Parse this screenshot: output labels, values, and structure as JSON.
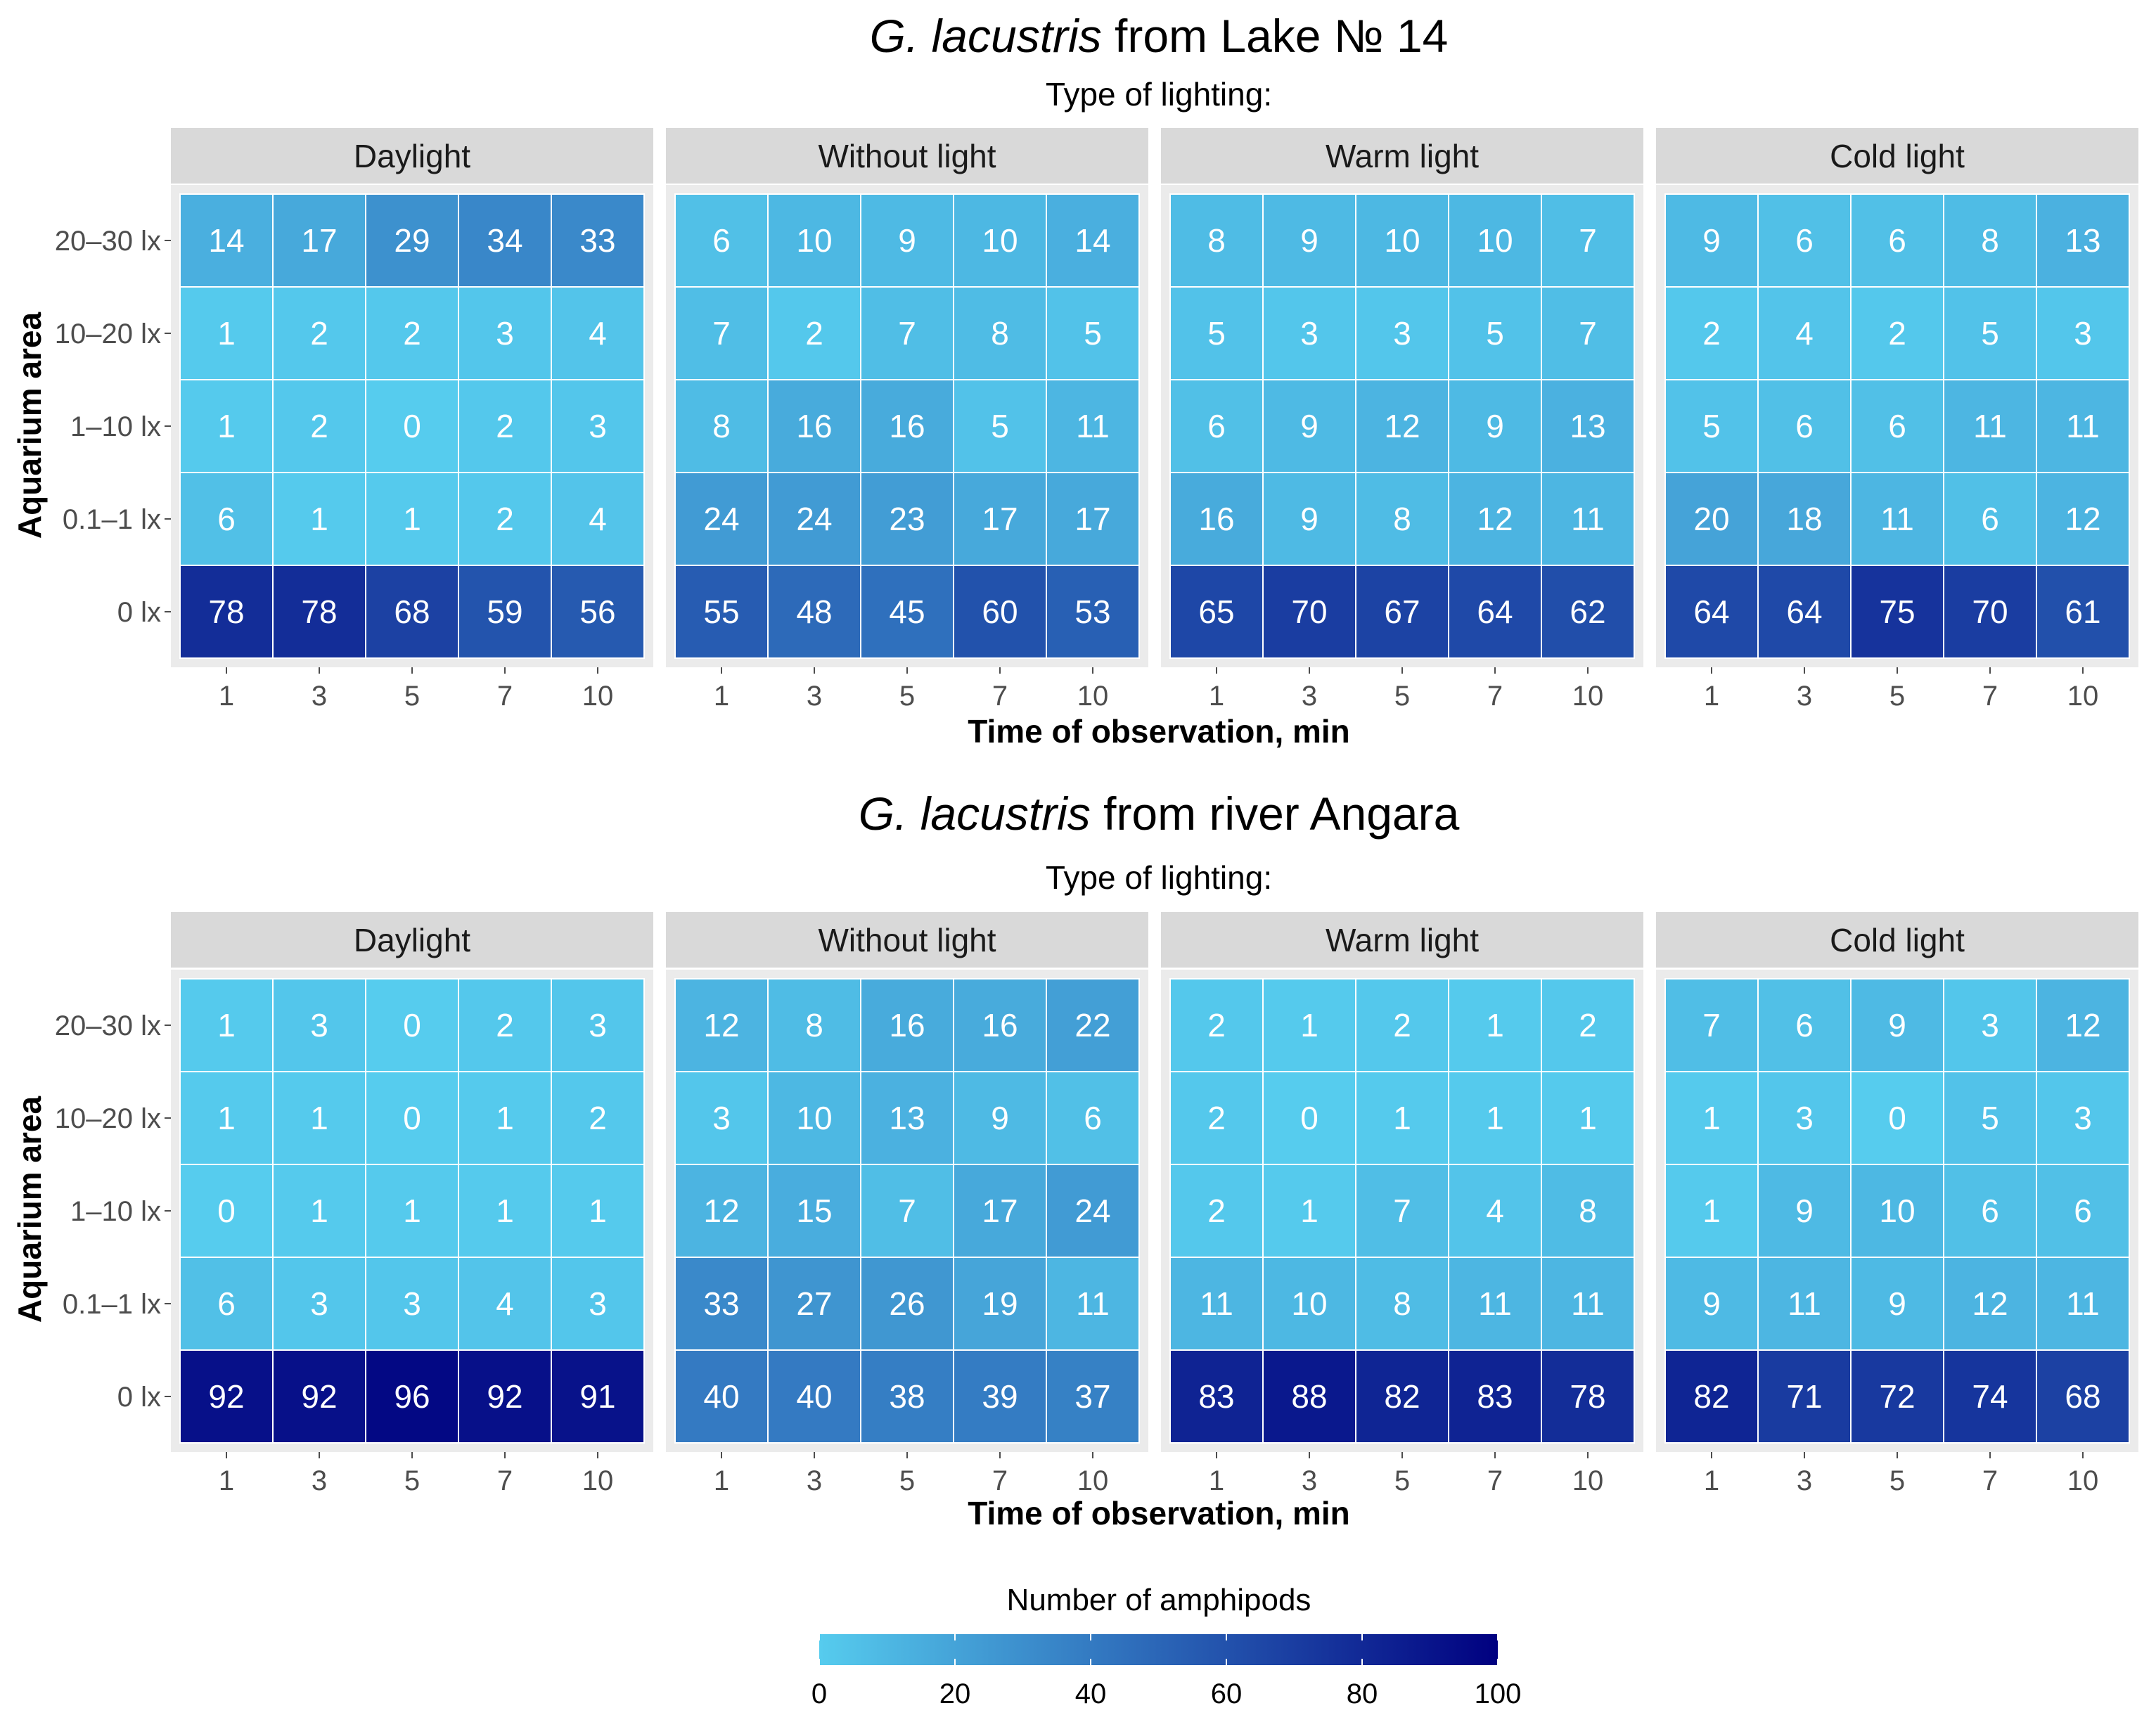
{
  "legend": {
    "title": "Number of amphipods",
    "ticks": [
      "0",
      "20",
      "40",
      "60",
      "80",
      "100"
    ],
    "range": [
      0,
      100
    ],
    "low_color": "#56CCEE",
    "high_color": "#000080"
  },
  "chart_data": [
    {
      "type": "heatmap",
      "title": {
        "species": "G. lacustris",
        "rest": " from Lake № 14"
      },
      "subtitle": "Type of lighting:",
      "xlabel": "Time of observation, min",
      "ylabel": "Aquarium area",
      "x": [
        "1",
        "3",
        "5",
        "7",
        "10"
      ],
      "y": [
        "20–30 lx",
        "10–20 lx",
        "1–10 lx",
        "0.1–1 lx",
        "0 lx"
      ],
      "facets": [
        {
          "name": "Daylight",
          "values": [
            [
              14,
              17,
              29,
              34,
              33
            ],
            [
              1,
              2,
              2,
              3,
              4
            ],
            [
              1,
              2,
              0,
              2,
              3
            ],
            [
              6,
              1,
              1,
              2,
              4
            ],
            [
              78,
              78,
              68,
              59,
              56
            ]
          ]
        },
        {
          "name": "Without light",
          "values": [
            [
              6,
              10,
              9,
              10,
              14
            ],
            [
              7,
              2,
              7,
              8,
              5
            ],
            [
              8,
              16,
              16,
              5,
              11
            ],
            [
              24,
              24,
              23,
              17,
              17
            ],
            [
              55,
              48,
              45,
              60,
              53
            ]
          ]
        },
        {
          "name": "Warm light",
          "values": [
            [
              8,
              9,
              10,
              10,
              7
            ],
            [
              5,
              3,
              3,
              5,
              7
            ],
            [
              6,
              9,
              12,
              9,
              13
            ],
            [
              16,
              9,
              8,
              12,
              11
            ],
            [
              65,
              70,
              67,
              64,
              62
            ]
          ]
        },
        {
          "name": "Cold light",
          "values": [
            [
              9,
              6,
              6,
              8,
              13
            ],
            [
              2,
              4,
              2,
              5,
              3
            ],
            [
              5,
              6,
              6,
              11,
              11
            ],
            [
              20,
              18,
              11,
              6,
              12
            ],
            [
              64,
              64,
              75,
              70,
              61
            ]
          ]
        }
      ]
    },
    {
      "type": "heatmap",
      "title": {
        "species": "G. lacustris",
        "rest": " from river Angara"
      },
      "subtitle": "Type of lighting:",
      "xlabel": "Time of observation, min",
      "ylabel": "Aquarium area",
      "x": [
        "1",
        "3",
        "5",
        "7",
        "10"
      ],
      "y": [
        "20–30 lx",
        "10–20 lx",
        "1–10 lx",
        "0.1–1 lx",
        "0 lx"
      ],
      "facets": [
        {
          "name": "Daylight",
          "values": [
            [
              1,
              3,
              0,
              2,
              3
            ],
            [
              1,
              1,
              0,
              1,
              2
            ],
            [
              0,
              1,
              1,
              1,
              1
            ],
            [
              6,
              3,
              3,
              4,
              3
            ],
            [
              92,
              92,
              96,
              92,
              91
            ]
          ]
        },
        {
          "name": "Without light",
          "values": [
            [
              12,
              8,
              16,
              16,
              22
            ],
            [
              3,
              10,
              13,
              9,
              6
            ],
            [
              12,
              15,
              7,
              17,
              24
            ],
            [
              33,
              27,
              26,
              19,
              11
            ],
            [
              40,
              40,
              38,
              39,
              37
            ]
          ]
        },
        {
          "name": "Warm light",
          "values": [
            [
              2,
              1,
              2,
              1,
              2
            ],
            [
              2,
              0,
              1,
              1,
              1
            ],
            [
              2,
              1,
              7,
              4,
              8
            ],
            [
              11,
              10,
              8,
              11,
              11
            ],
            [
              83,
              88,
              82,
              83,
              78
            ]
          ]
        },
        {
          "name": "Cold light",
          "values": [
            [
              7,
              6,
              9,
              3,
              12
            ],
            [
              1,
              3,
              0,
              5,
              3
            ],
            [
              1,
              9,
              10,
              6,
              6
            ],
            [
              9,
              11,
              9,
              12,
              11
            ],
            [
              82,
              71,
              72,
              74,
              68
            ]
          ]
        }
      ]
    }
  ]
}
